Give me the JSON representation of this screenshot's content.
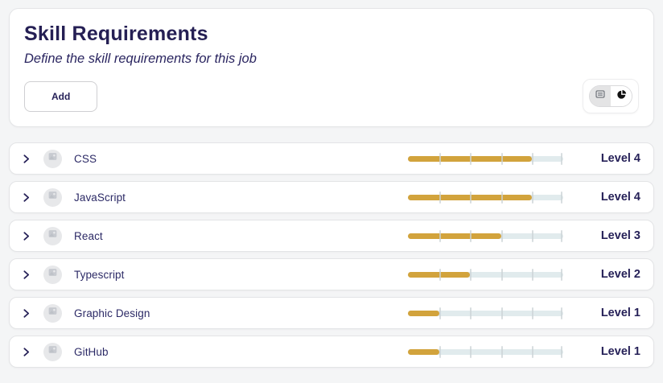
{
  "header": {
    "title": "Skill Requirements",
    "subtitle": "Define the skill requirements for this job",
    "add_button_label": "Add",
    "view_toggle": {
      "options": [
        {
          "name": "list-view",
          "icon": "list-view-icon",
          "selected": true
        },
        {
          "name": "chart-view",
          "icon": "pie-chart-icon",
          "selected": false
        }
      ]
    }
  },
  "skills": [
    {
      "name": "CSS",
      "level": 4,
      "level_label": "Level 4"
    },
    {
      "name": "JavaScript",
      "level": 4,
      "level_label": "Level 4"
    },
    {
      "name": "React",
      "level": 3,
      "level_label": "Level 3"
    },
    {
      "name": "Typescript",
      "level": 2,
      "level_label": "Level 2"
    },
    {
      "name": "Graphic Design",
      "level": 1,
      "level_label": "Level 1"
    },
    {
      "name": "GitHub",
      "level": 1,
      "level_label": "Level 1"
    }
  ],
  "slider": {
    "max_level": 5,
    "ticks": [
      1,
      2,
      3,
      4,
      5
    ]
  },
  "icons": {
    "row_expand": "chevron-right-icon",
    "row_avatar": "image-placeholder-icon"
  },
  "colors": {
    "accent_gold": "#d2a33c",
    "slider_track": "#e1ebed",
    "navy_text": "#262158",
    "page_background": "#f4f5f6",
    "card_border": "#e3e4e6"
  }
}
